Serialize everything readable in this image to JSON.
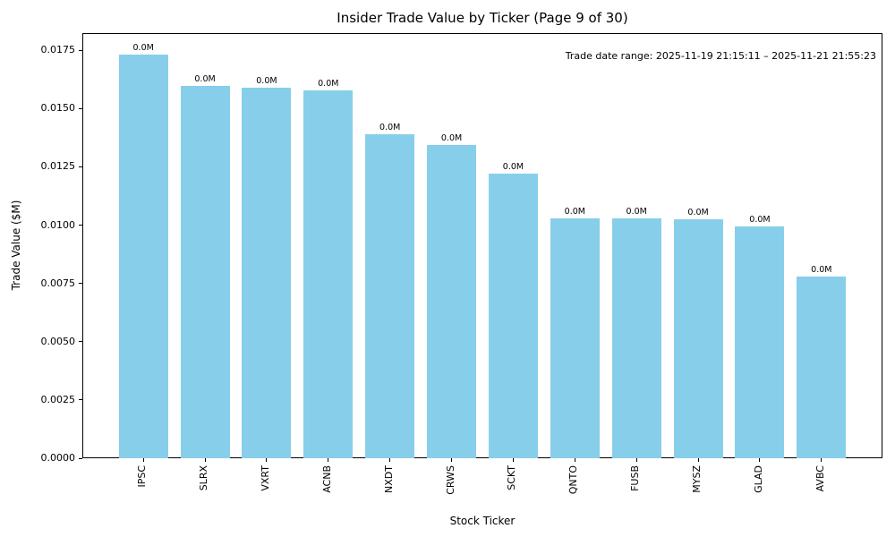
{
  "chart_data": {
    "type": "bar",
    "title": "Insider Trade Value by Ticker (Page 9 of 30)",
    "xlabel": "Stock Ticker",
    "ylabel": "Trade Value ($M)",
    "annotation": "Trade date range: 2025-11-19 21:15:11 – 2025-11-21 21:55:23",
    "categories": [
      "IPSC",
      "SLRX",
      "VXRT",
      "ACNB",
      "NXDT",
      "CRWS",
      "SCKT",
      "QNTO",
      "FUSB",
      "MYSZ",
      "GLAD",
      "AVBC"
    ],
    "values": [
      0.01732,
      0.01596,
      0.01588,
      0.01578,
      0.01389,
      0.01343,
      0.01223,
      0.0103,
      0.01028,
      0.01026,
      0.00996,
      0.0078
    ],
    "bar_labels": [
      "0.0M",
      "0.0M",
      "0.0M",
      "0.0M",
      "0.0M",
      "0.0M",
      "0.0M",
      "0.0M",
      "0.0M",
      "0.0M",
      "0.0M",
      "0.0M"
    ],
    "bar_color": "#87ceeb",
    "background_color": "#ffffff",
    "text_color": "#000000",
    "ylim": [
      0,
      0.01824
    ],
    "yticks": [
      0.0,
      0.0025,
      0.005,
      0.0075,
      0.01,
      0.0125,
      0.015,
      0.0175
    ],
    "ytick_labels": [
      "0.0000",
      "0.0025",
      "0.0050",
      "0.0075",
      "0.0100",
      "0.0125",
      "0.0150",
      "0.0175"
    ],
    "grid": false,
    "legend": null,
    "bar_width_fraction": 0.8
  }
}
